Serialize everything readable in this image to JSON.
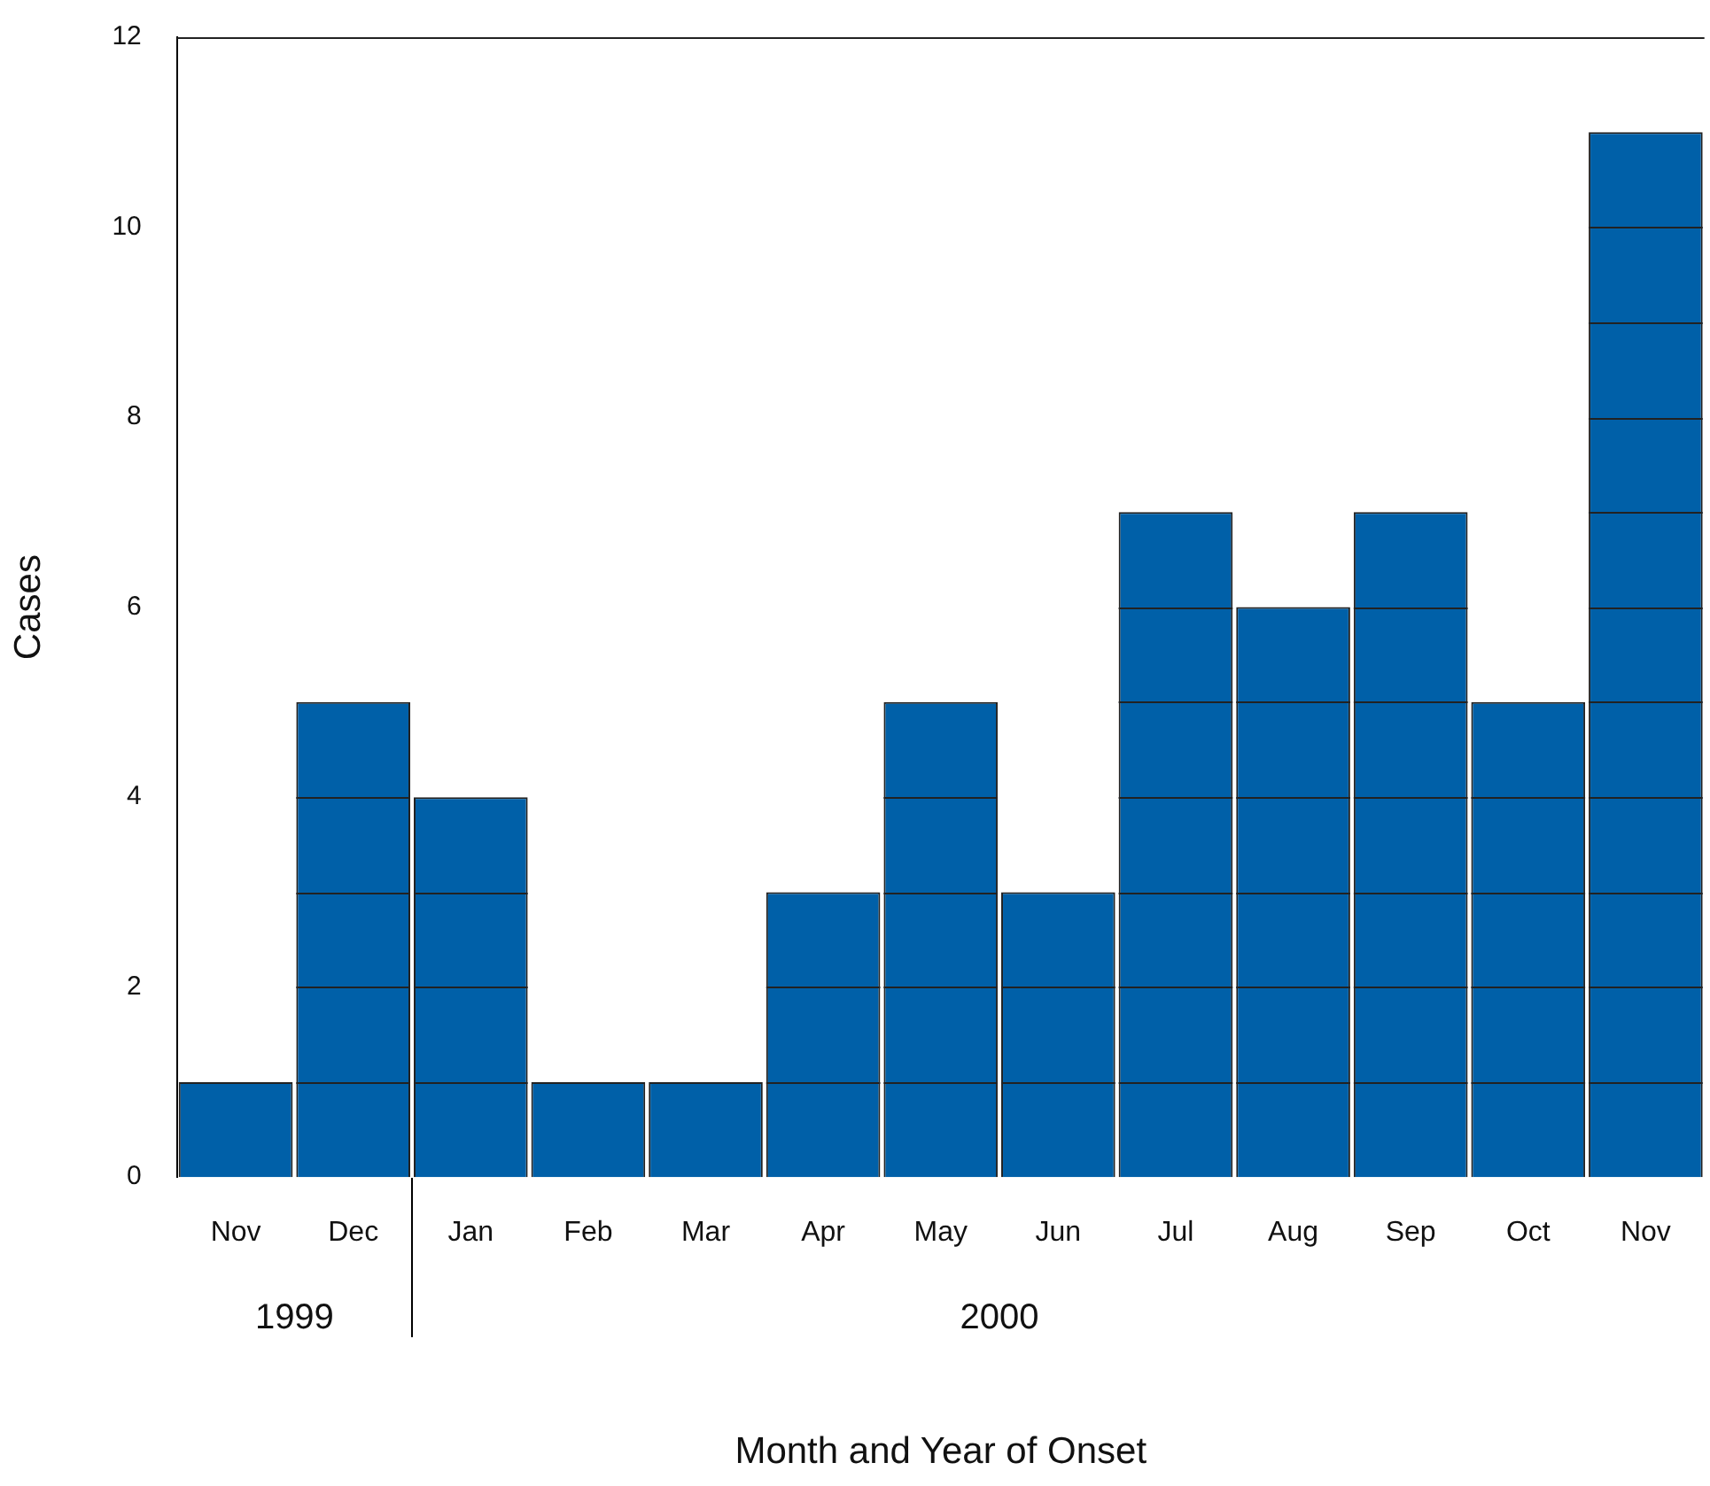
{
  "chart_data": {
    "type": "bar",
    "xlabel": "Month and Year of Onset",
    "ylabel": "Cases",
    "categories": [
      "Nov",
      "Dec",
      "Jan",
      "Feb",
      "Mar",
      "Apr",
      "May",
      "Jun",
      "Jul",
      "Aug",
      "Sep",
      "Oct",
      "Nov"
    ],
    "values": [
      1,
      5,
      4,
      1,
      1,
      3,
      5,
      3,
      7,
      6,
      7,
      5,
      11
    ],
    "color": "#0060a8",
    "ylim": [
      0,
      12
    ],
    "yticks": [
      0,
      2,
      4,
      6,
      8,
      10,
      12
    ],
    "grid": false,
    "legend": false,
    "annotations": [
      "1999",
      "2000"
    ]
  }
}
